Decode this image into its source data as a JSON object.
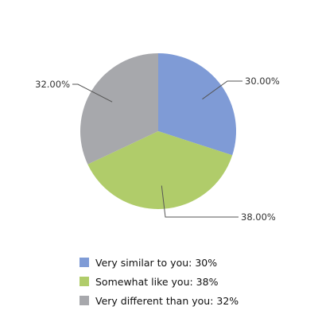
{
  "chart_data": {
    "type": "pie",
    "start_angle_deg": 0,
    "direction": "clockwise",
    "categories": [
      "Very similar to you",
      "Somewhat like you",
      "Very different than you"
    ],
    "values": [
      30,
      38,
      32
    ],
    "colors": [
      "#7f9bd6",
      "#b0cc6a",
      "#a7a8ac"
    ],
    "data_labels": [
      "30.00%",
      "38.00%",
      "32.00%"
    ],
    "legend": {
      "position": "bottom",
      "entries": [
        "Very similar to you: 30%",
        "Somewhat like you: 38%",
        "Very different than you: 32%"
      ]
    }
  }
}
